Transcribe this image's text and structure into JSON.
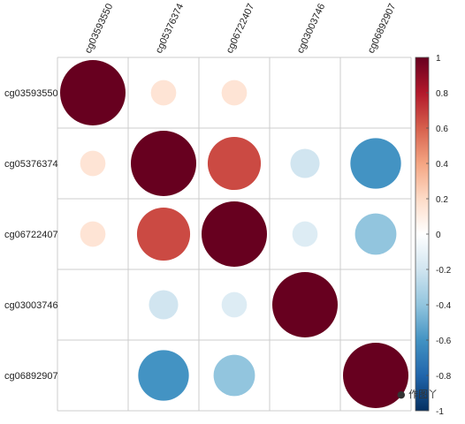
{
  "chart_data": {
    "type": "heatmap",
    "subtype": "correlation-circles",
    "variables": [
      "cg03593550",
      "cg05376374",
      "cg06722407",
      "cg03003746",
      "cg06892907"
    ],
    "matrix": [
      [
        1.0,
        0.15,
        0.15,
        0.0,
        0.0
      ],
      [
        0.15,
        1.0,
        0.66,
        -0.2,
        -0.6
      ],
      [
        0.15,
        0.66,
        1.0,
        -0.15,
        -0.4
      ],
      [
        0.0,
        -0.2,
        -0.15,
        1.0,
        0.0
      ],
      [
        0.0,
        -0.6,
        -0.4,
        0.0,
        1.0
      ]
    ],
    "colorbar": {
      "min": -1,
      "max": 1,
      "ticks": [
        -1,
        -0.8,
        -0.6,
        -0.4,
        -0.2,
        0,
        0.2,
        0.4,
        0.6,
        0.8,
        1
      ],
      "tick_labels": [
        "-1",
        "-0.8",
        "-0.6",
        "-0.4",
        "-0.2",
        "0",
        "0.2",
        "0.4",
        "0.6",
        "0.8",
        "1"
      ]
    },
    "grid": true,
    "legend_position": "right"
  },
  "watermark": {
    "icon": "wechat-icon",
    "text": "作图丫"
  }
}
